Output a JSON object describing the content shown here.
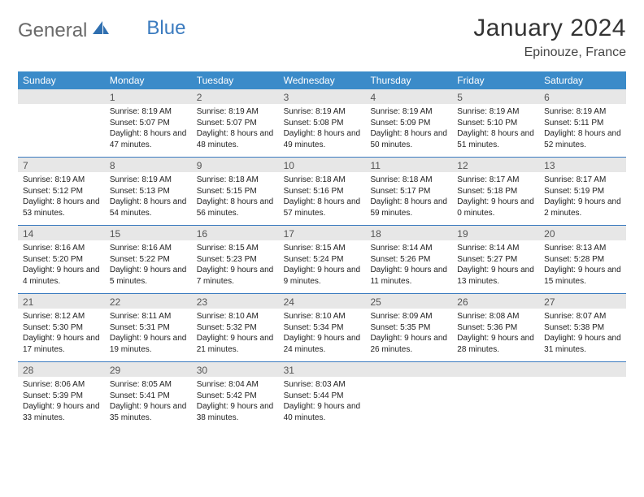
{
  "brand": {
    "part1": "General",
    "part2": "Blue"
  },
  "title": "January 2024",
  "location": "Epinouze, France",
  "colors": {
    "header_bg": "#3b8bc9",
    "row_border": "#3b7bbf",
    "daynum_bg": "#e7e7e7",
    "text": "#222222",
    "brand_gray": "#6a6a6a",
    "brand_blue": "#3b7bbf"
  },
  "weekdays": [
    "Sunday",
    "Monday",
    "Tuesday",
    "Wednesday",
    "Thursday",
    "Friday",
    "Saturday"
  ],
  "weeks": [
    [
      {
        "num": "",
        "lines": []
      },
      {
        "num": "1",
        "lines": [
          "Sunrise: 8:19 AM",
          "Sunset: 5:07 PM",
          "Daylight: 8 hours and 47 minutes."
        ]
      },
      {
        "num": "2",
        "lines": [
          "Sunrise: 8:19 AM",
          "Sunset: 5:07 PM",
          "Daylight: 8 hours and 48 minutes."
        ]
      },
      {
        "num": "3",
        "lines": [
          "Sunrise: 8:19 AM",
          "Sunset: 5:08 PM",
          "Daylight: 8 hours and 49 minutes."
        ]
      },
      {
        "num": "4",
        "lines": [
          "Sunrise: 8:19 AM",
          "Sunset: 5:09 PM",
          "Daylight: 8 hours and 50 minutes."
        ]
      },
      {
        "num": "5",
        "lines": [
          "Sunrise: 8:19 AM",
          "Sunset: 5:10 PM",
          "Daylight: 8 hours and 51 minutes."
        ]
      },
      {
        "num": "6",
        "lines": [
          "Sunrise: 8:19 AM",
          "Sunset: 5:11 PM",
          "Daylight: 8 hours and 52 minutes."
        ]
      }
    ],
    [
      {
        "num": "7",
        "lines": [
          "Sunrise: 8:19 AM",
          "Sunset: 5:12 PM",
          "Daylight: 8 hours and 53 minutes."
        ]
      },
      {
        "num": "8",
        "lines": [
          "Sunrise: 8:19 AM",
          "Sunset: 5:13 PM",
          "Daylight: 8 hours and 54 minutes."
        ]
      },
      {
        "num": "9",
        "lines": [
          "Sunrise: 8:18 AM",
          "Sunset: 5:15 PM",
          "Daylight: 8 hours and 56 minutes."
        ]
      },
      {
        "num": "10",
        "lines": [
          "Sunrise: 8:18 AM",
          "Sunset: 5:16 PM",
          "Daylight: 8 hours and 57 minutes."
        ]
      },
      {
        "num": "11",
        "lines": [
          "Sunrise: 8:18 AM",
          "Sunset: 5:17 PM",
          "Daylight: 8 hours and 59 minutes."
        ]
      },
      {
        "num": "12",
        "lines": [
          "Sunrise: 8:17 AM",
          "Sunset: 5:18 PM",
          "Daylight: 9 hours and 0 minutes."
        ]
      },
      {
        "num": "13",
        "lines": [
          "Sunrise: 8:17 AM",
          "Sunset: 5:19 PM",
          "Daylight: 9 hours and 2 minutes."
        ]
      }
    ],
    [
      {
        "num": "14",
        "lines": [
          "Sunrise: 8:16 AM",
          "Sunset: 5:20 PM",
          "Daylight: 9 hours and 4 minutes."
        ]
      },
      {
        "num": "15",
        "lines": [
          "Sunrise: 8:16 AM",
          "Sunset: 5:22 PM",
          "Daylight: 9 hours and 5 minutes."
        ]
      },
      {
        "num": "16",
        "lines": [
          "Sunrise: 8:15 AM",
          "Sunset: 5:23 PM",
          "Daylight: 9 hours and 7 minutes."
        ]
      },
      {
        "num": "17",
        "lines": [
          "Sunrise: 8:15 AM",
          "Sunset: 5:24 PM",
          "Daylight: 9 hours and 9 minutes."
        ]
      },
      {
        "num": "18",
        "lines": [
          "Sunrise: 8:14 AM",
          "Sunset: 5:26 PM",
          "Daylight: 9 hours and 11 minutes."
        ]
      },
      {
        "num": "19",
        "lines": [
          "Sunrise: 8:14 AM",
          "Sunset: 5:27 PM",
          "Daylight: 9 hours and 13 minutes."
        ]
      },
      {
        "num": "20",
        "lines": [
          "Sunrise: 8:13 AM",
          "Sunset: 5:28 PM",
          "Daylight: 9 hours and 15 minutes."
        ]
      }
    ],
    [
      {
        "num": "21",
        "lines": [
          "Sunrise: 8:12 AM",
          "Sunset: 5:30 PM",
          "Daylight: 9 hours and 17 minutes."
        ]
      },
      {
        "num": "22",
        "lines": [
          "Sunrise: 8:11 AM",
          "Sunset: 5:31 PM",
          "Daylight: 9 hours and 19 minutes."
        ]
      },
      {
        "num": "23",
        "lines": [
          "Sunrise: 8:10 AM",
          "Sunset: 5:32 PM",
          "Daylight: 9 hours and 21 minutes."
        ]
      },
      {
        "num": "24",
        "lines": [
          "Sunrise: 8:10 AM",
          "Sunset: 5:34 PM",
          "Daylight: 9 hours and 24 minutes."
        ]
      },
      {
        "num": "25",
        "lines": [
          "Sunrise: 8:09 AM",
          "Sunset: 5:35 PM",
          "Daylight: 9 hours and 26 minutes."
        ]
      },
      {
        "num": "26",
        "lines": [
          "Sunrise: 8:08 AM",
          "Sunset: 5:36 PM",
          "Daylight: 9 hours and 28 minutes."
        ]
      },
      {
        "num": "27",
        "lines": [
          "Sunrise: 8:07 AM",
          "Sunset: 5:38 PM",
          "Daylight: 9 hours and 31 minutes."
        ]
      }
    ],
    [
      {
        "num": "28",
        "lines": [
          "Sunrise: 8:06 AM",
          "Sunset: 5:39 PM",
          "Daylight: 9 hours and 33 minutes."
        ]
      },
      {
        "num": "29",
        "lines": [
          "Sunrise: 8:05 AM",
          "Sunset: 5:41 PM",
          "Daylight: 9 hours and 35 minutes."
        ]
      },
      {
        "num": "30",
        "lines": [
          "Sunrise: 8:04 AM",
          "Sunset: 5:42 PM",
          "Daylight: 9 hours and 38 minutes."
        ]
      },
      {
        "num": "31",
        "lines": [
          "Sunrise: 8:03 AM",
          "Sunset: 5:44 PM",
          "Daylight: 9 hours and 40 minutes."
        ]
      },
      {
        "num": "",
        "lines": []
      },
      {
        "num": "",
        "lines": []
      },
      {
        "num": "",
        "lines": []
      }
    ]
  ]
}
